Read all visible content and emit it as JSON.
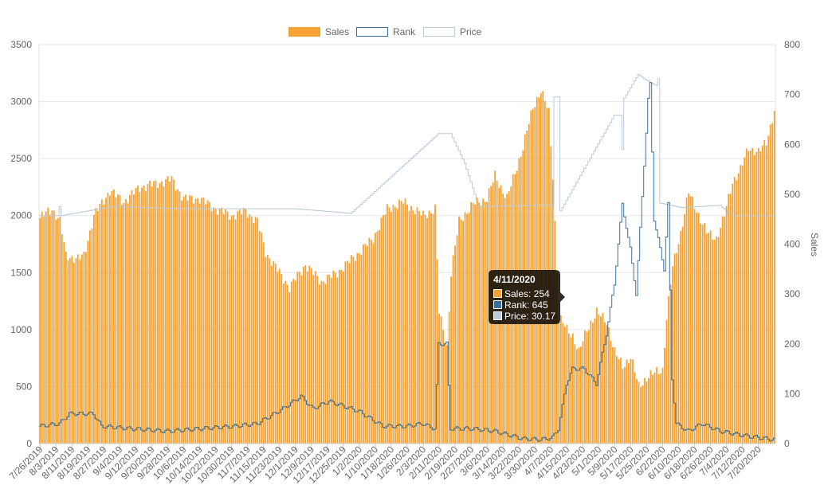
{
  "chart_data": {
    "type": "bar",
    "legend": [
      {
        "name": "Sales",
        "color": "#f4a234"
      },
      {
        "name": "Rank",
        "color": "#3b6f99"
      },
      {
        "name": "Price",
        "color": "#b9cad9"
      }
    ],
    "left_axis": {
      "min": 0,
      "max": 3500,
      "step": 500,
      "ticks": [
        "0",
        "500",
        "1000",
        "1500",
        "2000",
        "2500",
        "3000",
        "3500"
      ]
    },
    "right_axis": {
      "title": "Sales",
      "min": 0,
      "max": 800,
      "step": 100,
      "ticks": [
        "0",
        "100",
        "200",
        "300",
        "400",
        "500",
        "600",
        "700",
        "800"
      ]
    },
    "x_tick_labels": [
      "7/26/2019",
      "8/3/2019",
      "8/11/2019",
      "8/19/2019",
      "8/27/2019",
      "9/4/2019",
      "9/12/2019",
      "9/20/2019",
      "9/28/2019",
      "10/6/2019",
      "10/14/2019",
      "10/22/2019",
      "10/30/2019",
      "11/7/2019",
      "11/15/2019",
      "11/23/2019",
      "12/1/2019",
      "12/9/2019",
      "12/17/2019",
      "12/25/2019",
      "1/2/2020",
      "1/10/2020",
      "1/18/2020",
      "1/26/2020",
      "2/3/2020",
      "2/11/2020",
      "2/19/2020",
      "2/27/2020",
      "3/6/2020",
      "3/14/2020",
      "3/22/2020",
      "3/30/2020",
      "4/7/2020",
      "4/15/2020",
      "4/23/2020",
      "5/1/2020",
      "5/9/2020",
      "5/17/2020",
      "5/25/2020",
      "6/2/2020",
      "6/10/2020",
      "6/18/2020",
      "6/26/2020",
      "7/4/2020",
      "7/12/2020",
      "7/20/2020"
    ],
    "sales_keyframes": [
      [
        "7/26/2019",
        1980
      ],
      [
        "8/1/2019",
        2060
      ],
      [
        "8/5/2019",
        1950
      ],
      [
        "8/8/2019",
        1650
      ],
      [
        "8/14/2019",
        1620
      ],
      [
        "8/17/2019",
        1650
      ],
      [
        "8/22/2019",
        2000
      ],
      [
        "8/30/2019",
        2220
      ],
      [
        "9/6/2019",
        2120
      ],
      [
        "9/14/2019",
        2250
      ],
      [
        "9/22/2019",
        2280
      ],
      [
        "9/30/2019",
        2320
      ],
      [
        "10/6/2019",
        2150
      ],
      [
        "10/14/2019",
        2150
      ],
      [
        "10/22/2019",
        2060
      ],
      [
        "10/30/2019",
        2000
      ],
      [
        "11/6/2019",
        2040
      ],
      [
        "11/12/2019",
        1950
      ],
      [
        "11/16/2019",
        1680
      ],
      [
        "11/28/2019",
        1370
      ],
      [
        "12/6/2019",
        1570
      ],
      [
        "12/14/2019",
        1420
      ],
      [
        "12/22/2019",
        1500
      ],
      [
        "1/2/2020",
        1680
      ],
      [
        "1/9/2020",
        1800
      ],
      [
        "1/16/2020",
        2060
      ],
      [
        "1/24/2020",
        2120
      ],
      [
        "2/3/2020",
        2000
      ],
      [
        "2/9/2020",
        2060
      ],
      [
        "2/11/2020",
        1150
      ],
      [
        "2/15/2020",
        850
      ],
      [
        "2/17/2020",
        1500
      ],
      [
        "2/21/2020",
        1950
      ],
      [
        "2/28/2020",
        2100
      ],
      [
        "3/6/2020",
        2150
      ],
      [
        "3/10/2020",
        2350
      ],
      [
        "3/16/2020",
        2150
      ],
      [
        "3/24/2020",
        2600
      ],
      [
        "3/29/2020",
        2950
      ],
      [
        "4/2/2020",
        3100
      ],
      [
        "4/6/2020",
        2900
      ],
      [
        "4/8/2020",
        2350
      ],
      [
        "4/11/2020",
        1110
      ],
      [
        "4/15/2020",
        1000
      ],
      [
        "4/18/2020",
        950
      ],
      [
        "4/21/2020",
        800
      ],
      [
        "4/25/2020",
        1000
      ],
      [
        "4/30/2020",
        1150
      ],
      [
        "5/5/2020",
        1070
      ],
      [
        "5/9/2020",
        800
      ],
      [
        "5/13/2020",
        680
      ],
      [
        "5/17/2020",
        760
      ],
      [
        "5/21/2020",
        500
      ],
      [
        "5/25/2020",
        580
      ],
      [
        "5/29/2020",
        620
      ],
      [
        "6/2/2020",
        650
      ],
      [
        "6/4/2020",
        1100
      ],
      [
        "6/7/2020",
        1550
      ],
      [
        "6/11/2020",
        1850
      ],
      [
        "6/15/2020",
        2200
      ],
      [
        "6/19/2020",
        2050
      ],
      [
        "6/24/2020",
        1850
      ],
      [
        "6/29/2020",
        1800
      ],
      [
        "7/3/2020",
        2000
      ],
      [
        "7/7/2020",
        2300
      ],
      [
        "7/11/2020",
        2400
      ],
      [
        "7/15/2020",
        2600
      ],
      [
        "7/20/2020",
        2550
      ],
      [
        "7/24/2020",
        2650
      ],
      [
        "7/28/2020",
        2920
      ]
    ],
    "rank_keyframes": [
      [
        "7/26/2019",
        35
      ],
      [
        "8/5/2019",
        40
      ],
      [
        "8/10/2019",
        60
      ],
      [
        "8/22/2019",
        60
      ],
      [
        "8/26/2019",
        35
      ],
      [
        "9/10/2019",
        30
      ],
      [
        "9/28/2019",
        25
      ],
      [
        "10/15/2019",
        30
      ],
      [
        "11/1/2019",
        35
      ],
      [
        "11/12/2019",
        40
      ],
      [
        "11/25/2019",
        70
      ],
      [
        "12/4/2019",
        95
      ],
      [
        "12/10/2019",
        70
      ],
      [
        "12/18/2019",
        85
      ],
      [
        "1/2/2020",
        65
      ],
      [
        "1/14/2020",
        35
      ],
      [
        "1/26/2020",
        35
      ],
      [
        "2/3/2020",
        40
      ],
      [
        "2/9/2020",
        30
      ],
      [
        "2/11/2020",
        200
      ],
      [
        "2/15/2020",
        200
      ],
      [
        "2/17/2020",
        30
      ],
      [
        "2/28/2020",
        30
      ],
      [
        "3/10/2020",
        25
      ],
      [
        "3/24/2020",
        10
      ],
      [
        "4/2/2020",
        8
      ],
      [
        "4/8/2020",
        12
      ],
      [
        "4/11/2020",
        30
      ],
      [
        "4/15/2020",
        120
      ],
      [
        "4/18/2020",
        150
      ],
      [
        "4/24/2020",
        150
      ],
      [
        "4/30/2020",
        120
      ],
      [
        "5/5/2020",
        220
      ],
      [
        "5/9/2020",
        320
      ],
      [
        "5/13/2020",
        480
      ],
      [
        "5/17/2020",
        390
      ],
      [
        "5/20/2020",
        300
      ],
      [
        "5/24/2020",
        560
      ],
      [
        "5/26/2020",
        690
      ],
      [
        "5/27/2020",
        720
      ],
      [
        "5/29/2020",
        450
      ],
      [
        "6/3/2020",
        350
      ],
      [
        "6/5/2020",
        480
      ],
      [
        "6/7/2020",
        130
      ],
      [
        "6/9/2020",
        40
      ],
      [
        "6/15/2020",
        25
      ],
      [
        "6/22/2020",
        40
      ],
      [
        "7/1/2020",
        25
      ],
      [
        "7/15/2020",
        15
      ],
      [
        "7/28/2020",
        8
      ]
    ],
    "price_keyframes": [
      [
        "7/26/2019",
        2000
      ],
      [
        "8/4/2019",
        2000
      ],
      [
        "8/5/2019",
        2080
      ],
      [
        "8/6/2019",
        2000
      ],
      [
        "9/1/2019",
        2080
      ],
      [
        "10/6/2019",
        2060
      ],
      [
        "12/1/2019",
        2060
      ],
      [
        "12/29/2019",
        2020
      ],
      [
        "2/11/2020",
        2720
      ],
      [
        "2/17/2020",
        2720
      ],
      [
        "2/24/2020",
        2460
      ],
      [
        "3/2/2020",
        2080
      ],
      [
        "3/30/2020",
        2090
      ],
      [
        "4/8/2020",
        2090
      ],
      [
        "4/9/2020",
        3040
      ],
      [
        "4/11/2020",
        3040
      ],
      [
        "4/12/2020",
        2040
      ],
      [
        "5/9/2020",
        2880
      ],
      [
        "5/12/2020",
        2880
      ],
      [
        "5/13/2020",
        2580
      ],
      [
        "5/14/2020",
        3030
      ],
      [
        "5/21/2020",
        3240
      ],
      [
        "5/24/2020",
        3200
      ],
      [
        "5/30/2020",
        3140
      ],
      [
        "5/31/2020",
        3200
      ],
      [
        "6/1/2020",
        2110
      ],
      [
        "6/12/2020",
        2070
      ],
      [
        "7/1/2020",
        2090
      ],
      [
        "7/7/2020",
        2000
      ],
      [
        "7/28/2020",
        2000
      ]
    ],
    "tooltip": {
      "date": "4/11/2020",
      "lines": [
        "Sales: 254",
        "Rank: 645",
        "Price: 30.17"
      ]
    }
  }
}
